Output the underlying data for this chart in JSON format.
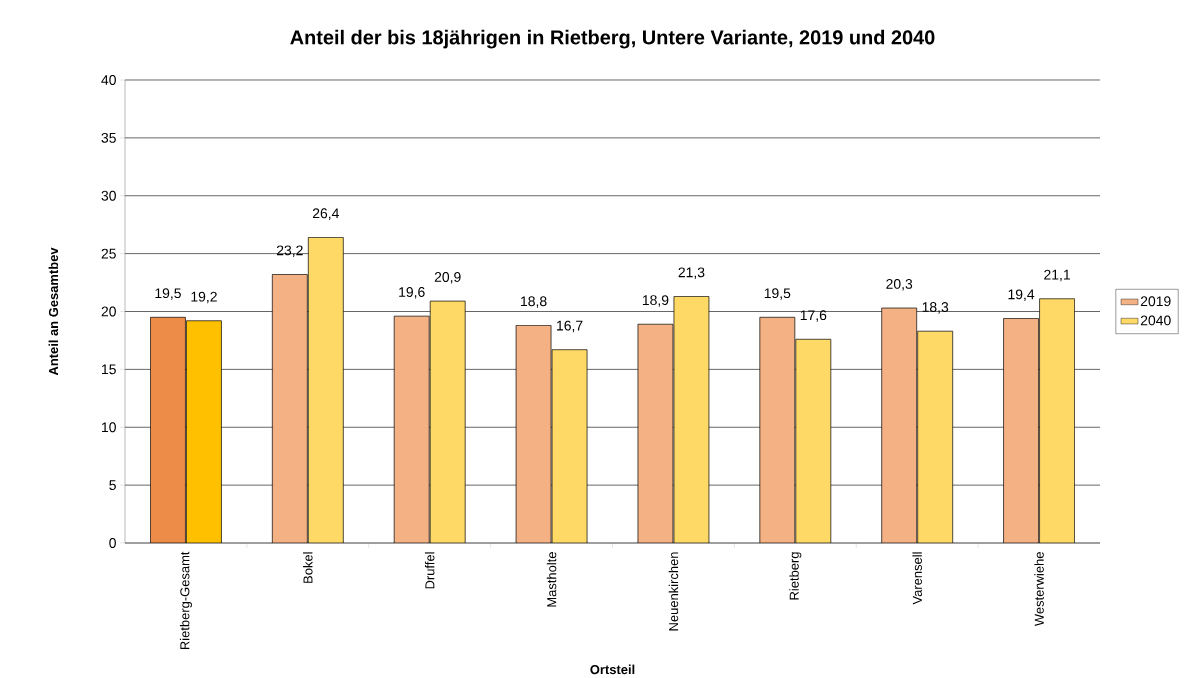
{
  "chart_data": {
    "type": "bar",
    "title": "Anteil der bis 18jährigen in Rietberg, Untere Variante, 2019 und 2040",
    "xlabel": "Ortsteil",
    "ylabel": "Anteil an Gesamtbev",
    "categories": [
      "Rietberg-Gesamt",
      "Bokel",
      "Druffel",
      "Mastholte",
      "Neuenkirchen",
      "Rietberg",
      "Varensell",
      "Westerwiehe"
    ],
    "series": [
      {
        "name": "2019",
        "color": "#f4b183",
        "colors": [
          "#ed8b48",
          "#f4b183",
          "#f4b183",
          "#f4b183",
          "#f4b183",
          "#f4b183",
          "#f4b183",
          "#f4b183"
        ],
        "values": [
          19.5,
          23.2,
          19.6,
          18.8,
          18.9,
          19.5,
          20.3,
          19.4
        ],
        "value_labels": [
          "19,5",
          "23,2",
          "19,6",
          "18,8",
          "18,9",
          "19,5",
          "20,3",
          "19,4"
        ]
      },
      {
        "name": "2040",
        "color": "#ffd966",
        "colors": [
          "#ffc000",
          "#ffd966",
          "#ffd966",
          "#ffd966",
          "#ffd966",
          "#ffd966",
          "#ffd966",
          "#ffd966"
        ],
        "values": [
          19.2,
          26.4,
          20.9,
          16.7,
          21.3,
          17.6,
          18.3,
          21.1
        ],
        "value_labels": [
          "19,2",
          "26,4",
          "20,9",
          "16,7",
          "21,3",
          "17,6",
          "18,3",
          "21,1"
        ]
      }
    ],
    "ylim": [
      0,
      40
    ],
    "yticks": [
      0,
      5,
      10,
      15,
      20,
      25,
      30,
      35,
      40
    ],
    "grid": "y",
    "legend": "right"
  }
}
